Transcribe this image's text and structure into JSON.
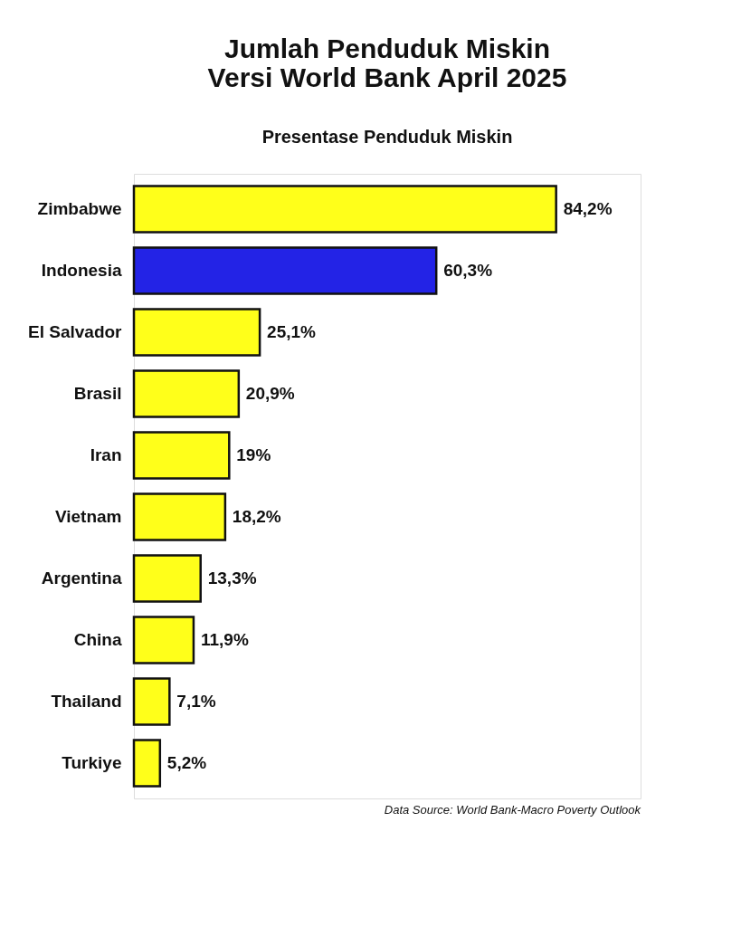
{
  "chart_data": {
    "type": "bar",
    "orientation": "horizontal",
    "title": "Jumlah Penduduk Miskin\nVersi World Bank April 2025",
    "subtitle": "Presentase Penduduk Miskin",
    "categories": [
      "Zimbabwe",
      "Indonesia",
      "El Salvador",
      "Brasil",
      "Iran",
      "Vietnam",
      "Argentina",
      "China",
      "Thailand",
      "Turkiye"
    ],
    "values": [
      84.2,
      60.3,
      25.1,
      20.9,
      19,
      18.2,
      13.3,
      11.9,
      7.1,
      5.2
    ],
    "value_labels": [
      "84,2%",
      "60,3%",
      "25,1%",
      "20,9%",
      "19%",
      "18,2%",
      "13,3%",
      "11,9%",
      "7,1%",
      "5,2%"
    ],
    "colors": [
      "#ffff1a",
      "#2323e6",
      "#ffff1a",
      "#ffff1a",
      "#ffff1a",
      "#ffff1a",
      "#ffff1a",
      "#ffff1a",
      "#ffff1a",
      "#ffff1a"
    ],
    "tick_labels": "y",
    "grid": false,
    "annotations": [
      "Data Source: World Bank-Macro Poverty Outlook"
    ]
  }
}
